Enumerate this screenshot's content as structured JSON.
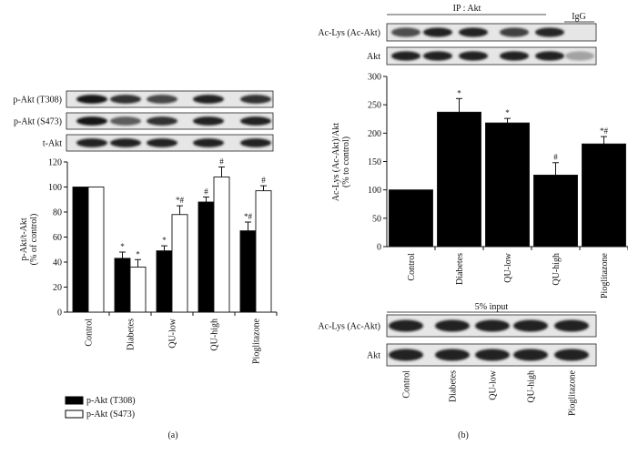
{
  "chart_data": [
    {
      "panel": "(a)",
      "type": "bar",
      "blots": [
        "p-Akt (T308)",
        "p-Akt (S473)",
        "t-Akt"
      ],
      "categories": [
        "Control",
        "Diabetes",
        "QU-low",
        "QU-high",
        "Pioglitazone"
      ],
      "ylabel": "p-Akt/t-Akt\n(% of control)",
      "ylim": [
        0,
        120
      ],
      "yticks": [
        0,
        20,
        40,
        60,
        80,
        100,
        120
      ],
      "series": [
        {
          "name": "p-Akt (T308)",
          "color": "#000000",
          "values": [
            100,
            43,
            49,
            88,
            65
          ],
          "errors": [
            0,
            5,
            4,
            4,
            7
          ],
          "annotations": [
            "",
            "*",
            "*",
            "#",
            "*#"
          ]
        },
        {
          "name": "p-Akt (S473)",
          "color": "#ffffff",
          "values": [
            100,
            36,
            78,
            108,
            97
          ],
          "errors": [
            0,
            6,
            7,
            8,
            4
          ],
          "annotations": [
            "",
            "*",
            "*#",
            "#",
            "#"
          ]
        }
      ],
      "legend_position": "bottom-left"
    },
    {
      "panel": "(b)",
      "type": "bar",
      "ip_label": "IP : Akt",
      "igg_label": "IgG",
      "blots": [
        "Ac-Lys (Ac-Akt)",
        "Akt"
      ],
      "categories": [
        "Control",
        "Diabetes",
        "QU-low",
        "QU-high",
        "Pioglitazone"
      ],
      "ylabel": "Ac-Lys (Ac-Akt)/Akt\n(% to control)",
      "ylim": [
        0,
        300
      ],
      "yticks": [
        0,
        50,
        100,
        150,
        200,
        250,
        300
      ],
      "series": [
        {
          "color": "#000000",
          "values": [
            100,
            237,
            218,
            126,
            181
          ],
          "errors": [
            0,
            24,
            8,
            22,
            13
          ],
          "annotations": [
            "",
            "*",
            "*",
            "#",
            "*#"
          ]
        }
      ],
      "input_label": "5% input",
      "input_blots": [
        "Ac-Lys (Ac-Akt)",
        "Akt"
      ]
    }
  ],
  "captions": {
    "a": "(a)",
    "b": "(b)"
  }
}
